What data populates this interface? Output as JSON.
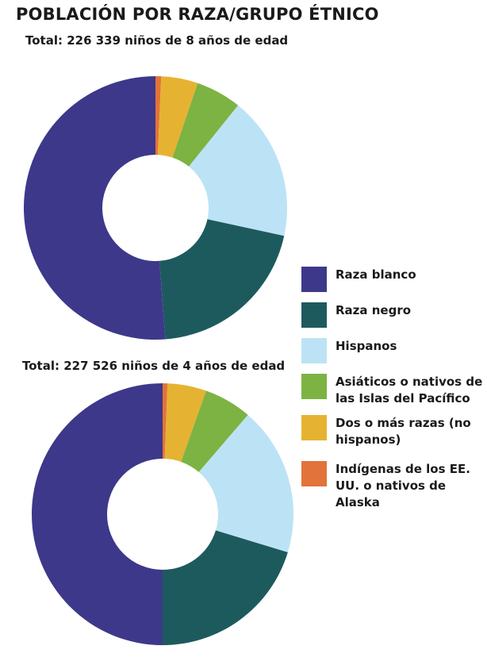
{
  "title": "POBLACIÓN POR RAZA/GRUPO ÉTNICO",
  "colors": {
    "white": "#3d3889",
    "black": "#1d5a5e",
    "hispanic": "#bce3f5",
    "asian": "#7cb342",
    "two_or_more": "#e6b232",
    "native": "#e2733a"
  },
  "legend": [
    {
      "key": "white",
      "label": "Raza blanco"
    },
    {
      "key": "black",
      "label": "Raza negro"
    },
    {
      "key": "hispanic",
      "label": "Hispanos"
    },
    {
      "key": "asian",
      "label": "Asiáticos o nativos de las Islas del Pacífico"
    },
    {
      "key": "two_or_more",
      "label": "Dos o más razas (no hispanos)"
    },
    {
      "key": "native",
      "label": "Indígenas de los EE. UU. o nativos de Alaska"
    }
  ],
  "chart_data": [
    {
      "type": "pie",
      "title": "Total: 226 339 niños de 8 años de edad",
      "categories": [
        "Indígenas de los EE. UU. o nativos de Alaska",
        "Dos o más razas (no hispanos)",
        "Asiáticos o nativos de las Islas del Pacífico",
        "Hispanos",
        "Raza negro",
        "Raza blanco"
      ],
      "values": [
        0.7,
        4.5,
        5.6,
        17.6,
        20.4,
        51.2
      ],
      "legend": "right"
    },
    {
      "type": "pie",
      "title": "Total: 227 526 niños de 4 años de edad",
      "categories": [
        "Indígenas de los EE. UU. o nativos de Alaska",
        "Dos o más razas (no hispanos)",
        "Asiáticos o nativos de las Islas del Pacífico",
        "Hispanos",
        "Raza negro",
        "Raza blanco"
      ],
      "values": [
        0.6,
        4.8,
        5.9,
        18.4,
        20.3,
        50.0
      ],
      "legend": "right"
    }
  ]
}
